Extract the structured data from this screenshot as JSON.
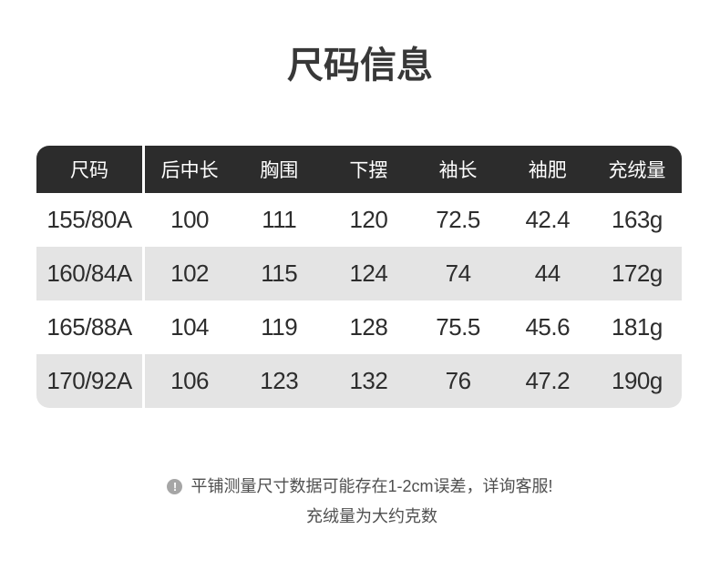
{
  "title": "尺码信息",
  "table": {
    "headers": [
      "尺码",
      "后中长",
      "胸围",
      "下摆",
      "袖长",
      "袖肥",
      "充绒量"
    ],
    "rows": [
      [
        "155/80A",
        "100",
        "111",
        "120",
        "72.5",
        "42.4",
        "163g"
      ],
      [
        "160/84A",
        "102",
        "115",
        "124",
        "74",
        "44",
        "172g"
      ],
      [
        "165/88A",
        "104",
        "119",
        "128",
        "75.5",
        "45.6",
        "181g"
      ],
      [
        "170/92A",
        "106",
        "123",
        "132",
        "76",
        "47.2",
        "190g"
      ]
    ]
  },
  "note": {
    "icon_glyph": "!",
    "line1": "平铺测量尺寸数据可能存在1-2cm误差，详询客服!",
    "line2": "充绒量为大约克数"
  },
  "colors": {
    "header_bg": "#2c2c2c",
    "header_text": "#ffffff",
    "row_alt_bg": "#e4e4e4",
    "row_bg": "#ffffff",
    "data_text": "#2d2d2d",
    "title_text": "#383838",
    "note_text": "#4f4f4f",
    "note_icon_bg": "#a6a6a6",
    "divider": "#ffffff"
  }
}
